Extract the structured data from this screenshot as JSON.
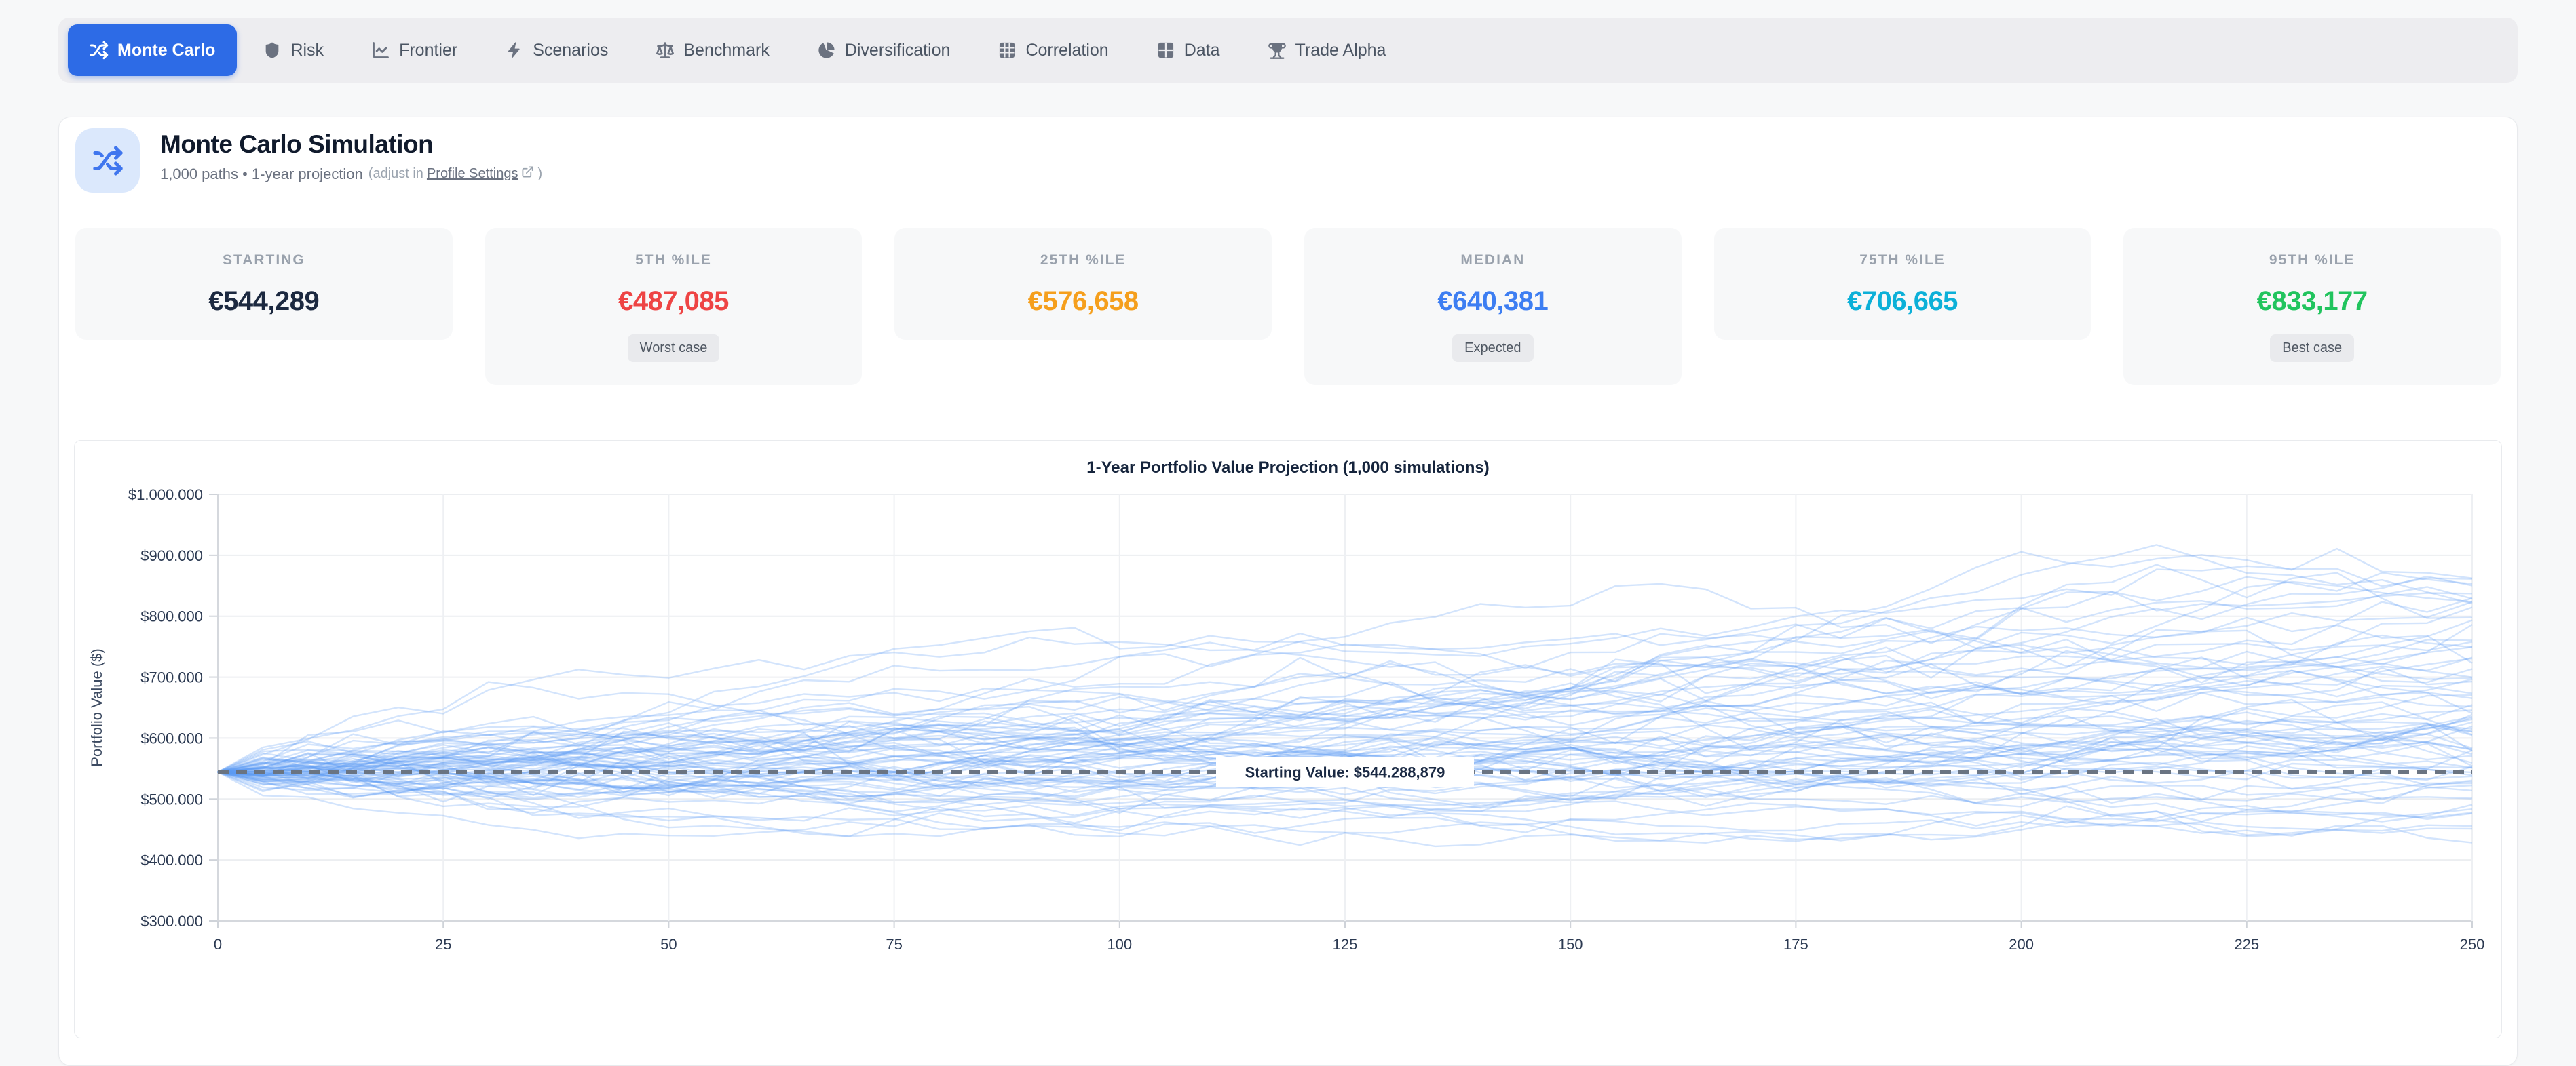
{
  "nav": {
    "tabs": [
      {
        "label": "Monte Carlo",
        "icon": "shuffle-icon",
        "active": true
      },
      {
        "label": "Risk",
        "icon": "shield-icon",
        "active": false
      },
      {
        "label": "Frontier",
        "icon": "line-chart-icon",
        "active": false
      },
      {
        "label": "Scenarios",
        "icon": "bolt-icon",
        "active": false
      },
      {
        "label": "Benchmark",
        "icon": "scale-icon",
        "active": false
      },
      {
        "label": "Diversification",
        "icon": "pie-chart-icon",
        "active": false
      },
      {
        "label": "Correlation",
        "icon": "grid-icon",
        "active": false
      },
      {
        "label": "Data",
        "icon": "table-icon",
        "active": false
      },
      {
        "label": "Trade Alpha",
        "icon": "trophy-icon",
        "active": false
      }
    ]
  },
  "header": {
    "icon": "shuffle-icon",
    "title": "Monte Carlo Simulation",
    "subtitle": "1,000 paths • 1-year projection",
    "adjust_prefix": "(adjust in",
    "adjust_link": "Profile Settings",
    "adjust_suffix": ")"
  },
  "stats": [
    {
      "label": "STARTING",
      "value": "€544,289",
      "color": "#1c2940",
      "badge": null
    },
    {
      "label": "5TH %ILE",
      "value": "€487,085",
      "color": "#ee4444",
      "badge": "Worst case"
    },
    {
      "label": "25TH %ILE",
      "value": "€576,658",
      "color": "#f59f1d",
      "badge": null
    },
    {
      "label": "MEDIAN",
      "value": "€640,381",
      "color": "#3d7ef2",
      "badge": "Expected"
    },
    {
      "label": "75TH %ILE",
      "value": "€706,665",
      "color": "#0cb0d8",
      "badge": null
    },
    {
      "label": "95TH %ILE",
      "value": "€833,177",
      "color": "#21c45e",
      "badge": "Best case"
    }
  ],
  "chart_data": {
    "type": "line",
    "title": "1-Year Portfolio Value Projection (1,000 simulations)",
    "xlabel": "",
    "ylabel": "Portfolio Value ($)",
    "xlim": [
      0,
      250
    ],
    "ylim": [
      300000,
      1000000
    ],
    "grid": true,
    "x_ticks": [
      0,
      25,
      50,
      75,
      100,
      125,
      150,
      175,
      200,
      225,
      250
    ],
    "y_ticks": [
      {
        "v": 1000000,
        "label": "$1.000.000"
      },
      {
        "v": 900000,
        "label": "$900.000"
      },
      {
        "v": 800000,
        "label": "$800.000"
      },
      {
        "v": 700000,
        "label": "$700.000"
      },
      {
        "v": 600000,
        "label": "$600.000"
      },
      {
        "v": 500000,
        "label": "$500.000"
      },
      {
        "v": 400000,
        "label": "$400.000"
      },
      {
        "v": 300000,
        "label": "$300.000"
      }
    ],
    "starting_value": 544288.879,
    "annotation": "Starting Value: $544.288,879",
    "percentiles": {
      "p5": 487085,
      "p25": 576658,
      "median": 640381,
      "p75": 706665,
      "p95": 833177
    },
    "simulation": {
      "visible_paths": 72,
      "steps": 50,
      "start": 544288.879,
      "drift_per_step": 0.0033,
      "vol_per_step": 0.024,
      "seed": 13,
      "clamp_min": 310000,
      "clamp_max": 990000
    },
    "path_color": "#5e9cf3",
    "path_opacity": 0.27
  }
}
